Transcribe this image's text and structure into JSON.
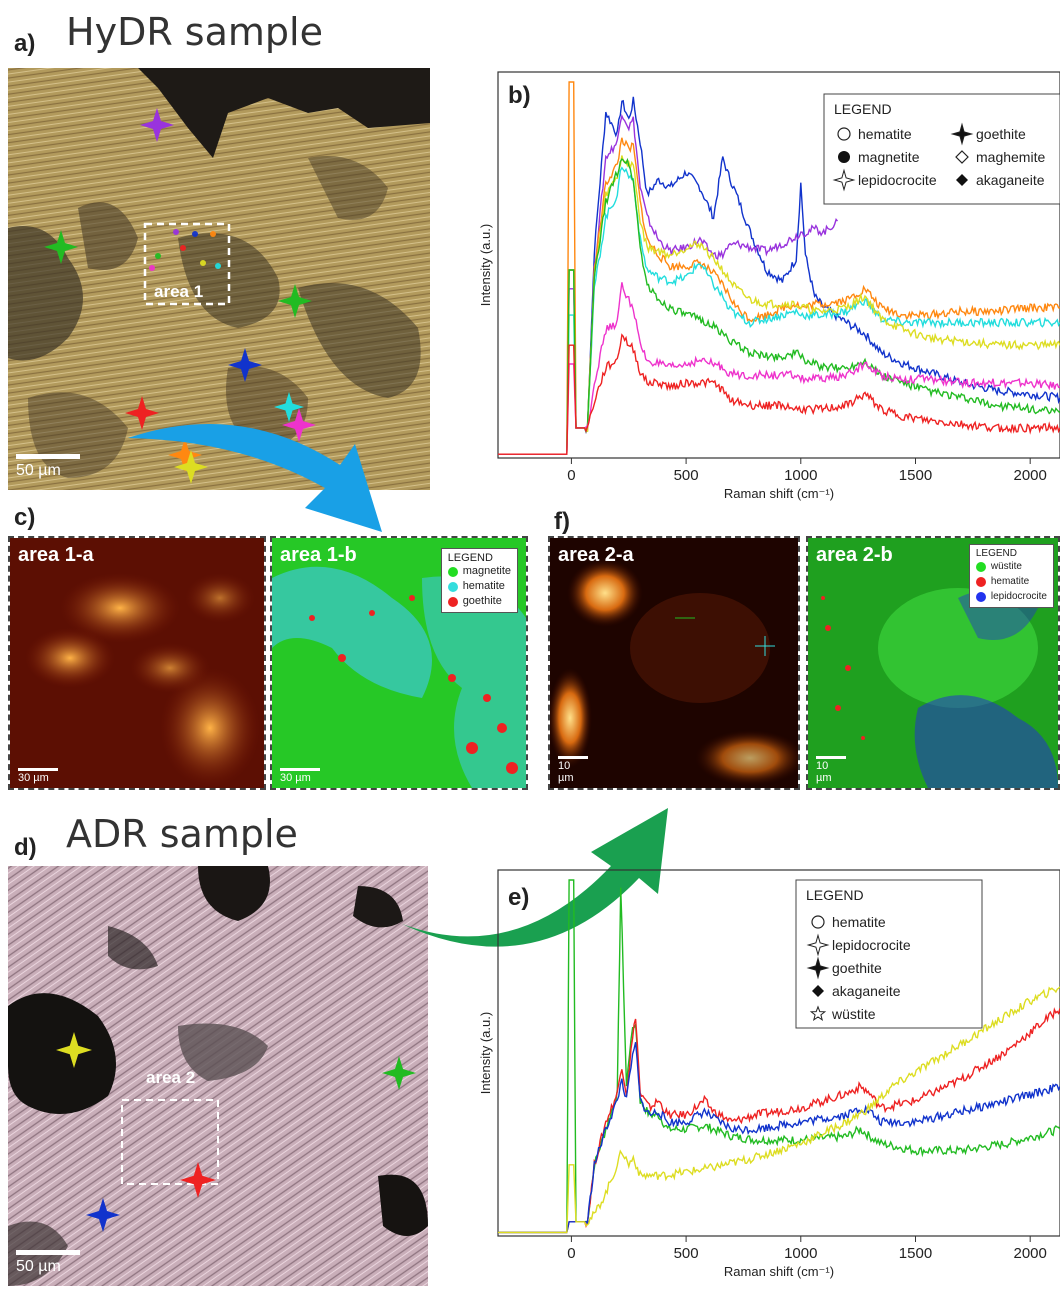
{
  "panel_a": {
    "letter": "a)",
    "heading": "HyDR sample",
    "area_label": "area 1",
    "scale": "50 µm"
  },
  "panel_b": {
    "letter": "b)"
  },
  "panel_c": {
    "letter": "c)"
  },
  "panel_d": {
    "letter": "d)",
    "heading": "ADR sample",
    "area_label": "area 2",
    "scale": "50 µm"
  },
  "panel_e": {
    "letter": "e)"
  },
  "panel_f": {
    "letter": "f)"
  },
  "maps": [
    {
      "title": "area 1-a",
      "scale": "30 µm"
    },
    {
      "title": "area 1-b",
      "scale": "30 µm",
      "legend_title": "LEGEND",
      "legend": [
        {
          "label": "magnetite",
          "color": "#22dd22"
        },
        {
          "label": "hematite",
          "color": "#33dddd"
        },
        {
          "label": "goethite",
          "color": "#ee2222"
        }
      ]
    },
    {
      "title": "area 2-a",
      "scale": "10 µm"
    },
    {
      "title": "area 2-b",
      "scale": "10 µm",
      "legend_title": "LEGEND",
      "legend": [
        {
          "label": "wüstite",
          "color": "#22dd22"
        },
        {
          "label": "hematite",
          "color": "#ee2222"
        },
        {
          "label": "lepidocrocite",
          "color": "#2233ee"
        }
      ]
    }
  ],
  "colors": {
    "violet": "#9933dd",
    "green": "#22bb22",
    "blue": "#1133cc",
    "red": "#ee2222",
    "cyan": "#22dddd",
    "magenta": "#ee33cc",
    "orange": "#ff8811",
    "yellow": "#dddd22",
    "arrow_blue": "#19a0e6",
    "arrow_green": "#1aa050"
  },
  "chart_data": [
    {
      "type": "line",
      "panel": "b)",
      "xlabel": "Raman shift (cm⁻¹)",
      "ylabel": "Intensity (a.u.)",
      "xlim": [
        -320,
        2130
      ],
      "xticks": [
        0,
        500,
        1000,
        1500,
        2000
      ],
      "legend_title": "LEGEND",
      "legend_position": "top-right",
      "legend": [
        {
          "label": "hematite",
          "marker": "open-circle"
        },
        {
          "label": "magnetite",
          "marker": "filled-circle"
        },
        {
          "label": "lepidocrocite",
          "marker": "open-star4"
        },
        {
          "label": "goethite",
          "marker": "filled-star4"
        },
        {
          "label": "maghemite",
          "marker": "open-diamond"
        },
        {
          "label": "akaganeite",
          "marker": "filled-diamond"
        }
      ],
      "series": [
        {
          "color": "#1133cc",
          "x": [
            -320,
            -20,
            -10,
            10,
            20,
            70,
            100,
            150,
            200,
            220,
            250,
            270,
            300,
            330,
            380,
            430,
            500,
            560,
            620,
            660,
            680,
            720,
            780,
            850,
            920,
            980,
            1000,
            1020,
            1060,
            1100,
            1200,
            1280,
            1350,
            1450,
            1550,
            1700,
            1850,
            2000,
            2130
          ],
          "y": [
            1,
            1,
            50,
            50,
            8,
            8,
            55,
            92,
            86,
            95,
            90,
            95,
            84,
            70,
            74,
            72,
            76,
            72,
            64,
            80,
            76,
            70,
            60,
            50,
            47,
            53,
            73,
            54,
            43,
            40,
            36,
            33,
            28,
            25,
            23,
            20,
            18,
            17,
            16
          ]
        },
        {
          "color": "#9933dd",
          "x": [
            -320,
            -20,
            -10,
            10,
            20,
            70,
            100,
            150,
            200,
            220,
            250,
            270,
            300,
            330,
            380,
            430,
            500,
            560,
            620,
            660,
            680,
            720,
            780,
            850,
            920,
            980,
            1000,
            1020,
            1060,
            1100,
            1160
          ],
          "y": [
            1,
            1,
            45,
            45,
            8,
            8,
            50,
            80,
            84,
            92,
            88,
            90,
            72,
            64,
            58,
            55,
            56,
            58,
            54,
            54,
            56,
            57,
            56,
            55,
            57,
            59,
            60,
            60,
            61,
            60,
            63
          ]
        },
        {
          "color": "#ff8811",
          "x": [
            -320,
            -20,
            -10,
            10,
            20,
            70,
            100,
            150,
            200,
            220,
            250,
            270,
            300,
            330,
            380,
            430,
            500,
            560,
            620,
            660,
            680,
            720,
            780,
            850,
            920,
            980,
            1000,
            1020,
            1060,
            1100,
            1200,
            1280,
            1350,
            1450,
            1550,
            1700,
            1850,
            2000,
            2130
          ],
          "y": [
            1,
            1,
            100,
            100,
            8,
            8,
            50,
            73,
            78,
            85,
            82,
            83,
            68,
            58,
            54,
            51,
            51,
            52,
            49,
            46,
            44,
            40,
            37,
            38,
            40,
            41,
            40,
            40,
            41,
            41,
            42,
            45,
            40,
            38,
            38,
            39,
            39,
            40,
            40
          ]
        },
        {
          "color": "#22dddd",
          "x": [
            -320,
            -20,
            -10,
            10,
            20,
            70,
            100,
            150,
            200,
            220,
            250,
            270,
            300,
            330,
            380,
            430,
            500,
            560,
            620,
            660,
            680,
            720,
            780,
            850,
            920,
            980,
            1000,
            1020,
            1060,
            1100,
            1200,
            1280,
            1350,
            1450,
            1550,
            1700,
            1850,
            2000,
            2130
          ],
          "y": [
            1,
            1,
            38,
            38,
            8,
            8,
            45,
            64,
            70,
            78,
            75,
            74,
            58,
            50,
            48,
            47,
            48,
            52,
            46,
            43,
            40,
            38,
            36,
            37,
            38,
            39,
            38,
            38,
            38,
            38,
            39,
            42,
            37,
            36,
            36,
            36,
            36,
            36,
            36
          ]
        },
        {
          "color": "#dddd22",
          "x": [
            -320,
            -20,
            -10,
            10,
            20,
            70,
            100,
            150,
            200,
            220,
            250,
            270,
            300,
            330,
            380,
            430,
            500,
            560,
            620,
            660,
            680,
            720,
            780,
            850,
            920,
            980,
            1000,
            1020,
            1060,
            1100,
            1200,
            1280,
            1350,
            1450,
            1550,
            1700,
            1850,
            2000,
            2130
          ],
          "y": [
            1,
            1,
            50,
            50,
            8,
            8,
            48,
            70,
            75,
            80,
            78,
            78,
            63,
            56,
            55,
            54,
            56,
            57,
            53,
            50,
            48,
            45,
            42,
            41,
            41,
            41,
            40,
            40,
            39,
            39,
            40,
            43,
            37,
            34,
            32,
            31,
            30,
            30,
            30
          ]
        },
        {
          "color": "#22bb22",
          "x": [
            -320,
            -20,
            -10,
            10,
            20,
            70,
            100,
            150,
            200,
            220,
            250,
            270,
            300,
            330,
            380,
            430,
            500,
            560,
            620,
            660,
            680,
            720,
            780,
            850,
            920,
            980,
            1000,
            1020,
            1060,
            1100,
            1200,
            1280,
            1350,
            1450,
            1550,
            1700,
            1850,
            2000,
            2130
          ],
          "y": [
            1,
            1,
            50,
            50,
            8,
            8,
            48,
            68,
            76,
            80,
            78,
            74,
            56,
            46,
            42,
            40,
            38,
            37,
            35,
            33,
            32,
            30,
            28,
            27,
            27,
            28,
            27,
            26,
            25,
            24,
            24,
            26,
            22,
            20,
            18,
            16,
            14,
            13,
            12
          ]
        },
        {
          "color": "#ee33cc",
          "x": [
            -320,
            -20,
            -10,
            10,
            20,
            70,
            100,
            150,
            200,
            220,
            250,
            270,
            300,
            330,
            380,
            430,
            500,
            560,
            620,
            660,
            680,
            720,
            780,
            850,
            920,
            980,
            1000,
            1020,
            1060,
            1100,
            1200,
            1280,
            1350,
            1450,
            1550,
            1700,
            1850,
            2000,
            2130
          ],
          "y": [
            1,
            1,
            25,
            25,
            8,
            8,
            20,
            34,
            36,
            46,
            42,
            40,
            30,
            26,
            25,
            24,
            25,
            26,
            25,
            24,
            23,
            22,
            22,
            22,
            22,
            22,
            21,
            21,
            21,
            21,
            22,
            25,
            22,
            21,
            21,
            20,
            20,
            20,
            19
          ]
        },
        {
          "color": "#ee2222",
          "x": [
            -320,
            -20,
            -10,
            10,
            20,
            70,
            100,
            150,
            200,
            220,
            250,
            270,
            300,
            330,
            380,
            430,
            500,
            560,
            620,
            660,
            680,
            720,
            780,
            850,
            920,
            980,
            1000,
            1020,
            1060,
            1100,
            1200,
            1280,
            1350,
            1450,
            1550,
            1700,
            1850,
            2000,
            2130
          ],
          "y": [
            1,
            1,
            30,
            30,
            8,
            8,
            15,
            24,
            26,
            33,
            30,
            29,
            23,
            20,
            20,
            19,
            20,
            20,
            20,
            18,
            16,
            15,
            14,
            14,
            14,
            13,
            13,
            13,
            13,
            13,
            14,
            17,
            13,
            11,
            10,
            9,
            8,
            8,
            8
          ]
        }
      ]
    },
    {
      "type": "line",
      "panel": "e)",
      "xlabel": "Raman shift (cm⁻¹)",
      "ylabel": "Intensity (a.u.)",
      "xlim": [
        -320,
        2130
      ],
      "xticks": [
        0,
        500,
        1000,
        1500,
        2000
      ],
      "legend_title": "LEGEND",
      "legend_position": "top-right",
      "legend": [
        {
          "label": "hematite",
          "marker": "open-circle"
        },
        {
          "label": "lepidocrocite",
          "marker": "open-star4"
        },
        {
          "label": "goethite",
          "marker": "filled-star4"
        },
        {
          "label": "akaganeite",
          "marker": "filled-diamond"
        },
        {
          "label": "wüstite",
          "marker": "open-star5"
        }
      ],
      "series": [
        {
          "color": "#22bb22",
          "x": [
            -320,
            -20,
            -10,
            10,
            20,
            70,
            100,
            150,
            200,
            215,
            240,
            260,
            280,
            300,
            340,
            380,
            420,
            500,
            580,
            620,
            700,
            800,
            1000,
            1200,
            1260,
            1300,
            1350,
            1500,
            1700,
            1900,
            2130
          ],
          "y": [
            1,
            1,
            100,
            100,
            4,
            4,
            20,
            30,
            40,
            98,
            42,
            56,
            60,
            38,
            34,
            34,
            30,
            30,
            31,
            30,
            28,
            27,
            27,
            28,
            30,
            28,
            26,
            24,
            24,
            26,
            30
          ]
        },
        {
          "color": "#ee2222",
          "x": [
            -320,
            -20,
            -10,
            10,
            20,
            70,
            100,
            150,
            200,
            220,
            240,
            260,
            280,
            300,
            340,
            380,
            420,
            500,
            580,
            620,
            700,
            800,
            1000,
            1200,
            1260,
            1300,
            1350,
            1500,
            1700,
            1900,
            2130
          ],
          "y": [
            1,
            1,
            4,
            4,
            4,
            4,
            20,
            32,
            40,
            48,
            40,
            52,
            62,
            40,
            36,
            38,
            34,
            34,
            38,
            35,
            32,
            34,
            36,
            40,
            42,
            40,
            36,
            38,
            44,
            52,
            64
          ]
        },
        {
          "color": "#1133cc",
          "x": [
            -320,
            -20,
            -10,
            10,
            20,
            70,
            100,
            150,
            200,
            220,
            240,
            260,
            280,
            300,
            340,
            380,
            420,
            500,
            580,
            620,
            700,
            800,
            1000,
            1200,
            1260,
            1300,
            1350,
            1500,
            1700,
            1900,
            2130
          ],
          "y": [
            1,
            1,
            4,
            4,
            4,
            4,
            20,
            30,
            38,
            44,
            38,
            48,
            54,
            38,
            34,
            35,
            32,
            32,
            35,
            33,
            30,
            30,
            32,
            34,
            36,
            35,
            32,
            32,
            35,
            38,
            42
          ]
        },
        {
          "color": "#dddd22",
          "x": [
            -320,
            -20,
            -10,
            10,
            20,
            70,
            100,
            150,
            200,
            220,
            250,
            270,
            300,
            400,
            600,
            800,
            1000,
            1200,
            1300,
            1400,
            1600,
            1800,
            2000,
            2130
          ],
          "y": [
            1,
            1,
            20,
            20,
            4,
            4,
            6,
            12,
            20,
            24,
            20,
            22,
            17,
            17,
            19,
            22,
            26,
            32,
            36,
            42,
            50,
            58,
            66,
            70
          ]
        }
      ]
    }
  ]
}
